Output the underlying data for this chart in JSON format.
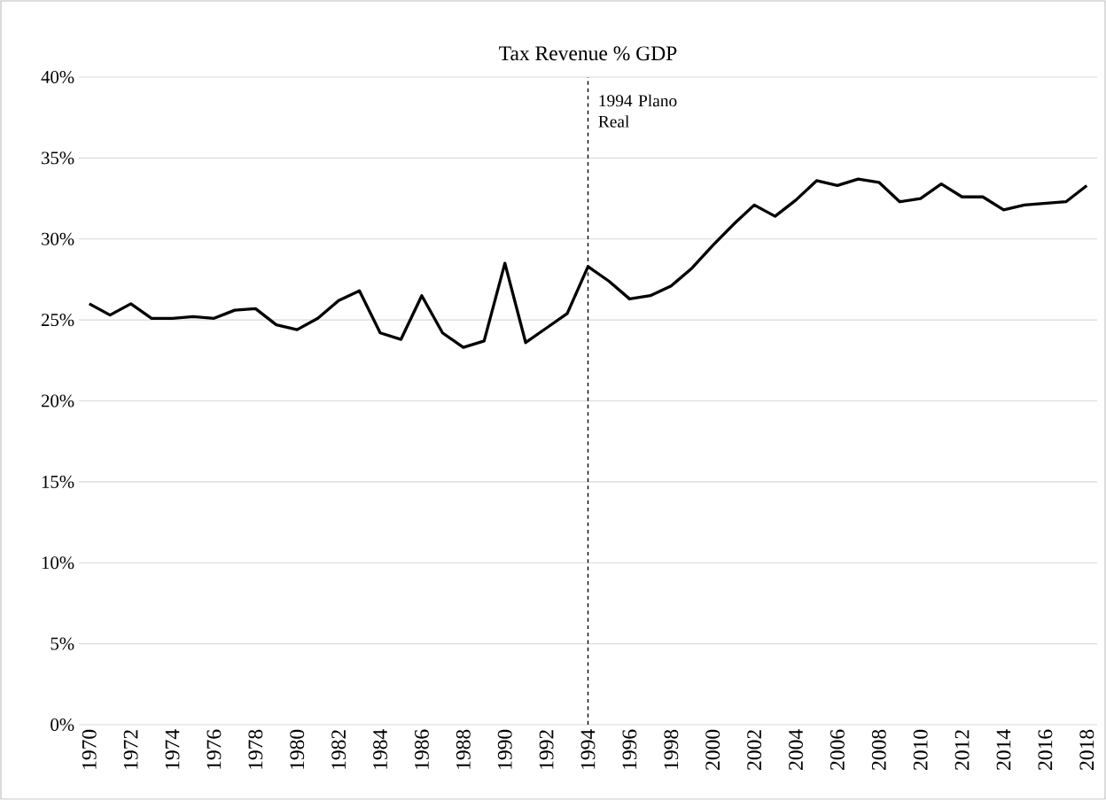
{
  "chart_data": {
    "type": "line",
    "title": "Tax Revenue % GDP",
    "x": [
      1970,
      1971,
      1972,
      1973,
      1974,
      1975,
      1976,
      1977,
      1978,
      1979,
      1980,
      1981,
      1982,
      1983,
      1984,
      1985,
      1986,
      1987,
      1988,
      1989,
      1990,
      1991,
      1992,
      1993,
      1994,
      1995,
      1996,
      1997,
      1998,
      1999,
      2000,
      2001,
      2002,
      2003,
      2004,
      2005,
      2006,
      2007,
      2008,
      2009,
      2010,
      2011,
      2012,
      2013,
      2014,
      2015,
      2016,
      2017,
      2018
    ],
    "series": [
      {
        "color": "#000000",
        "values": [
          26.0,
          25.3,
          26.0,
          25.1,
          25.1,
          25.2,
          25.1,
          25.6,
          25.7,
          24.7,
          24.4,
          25.1,
          26.2,
          26.8,
          24.2,
          23.8,
          26.5,
          24.2,
          23.3,
          23.7,
          28.5,
          23.6,
          24.5,
          25.4,
          28.3,
          27.4,
          26.3,
          26.5,
          27.1,
          28.2,
          29.6,
          30.9,
          32.1,
          31.4,
          32.4,
          33.6,
          33.3,
          33.7,
          33.5,
          32.3,
          32.5,
          33.4,
          32.6,
          32.6,
          31.8,
          32.1,
          32.2,
          32.3,
          33.3
        ]
      }
    ],
    "xlim": [
      1969.5,
      2018.5
    ],
    "xticks": [
      1970,
      1972,
      1974,
      1976,
      1978,
      1980,
      1982,
      1984,
      1986,
      1988,
      1990,
      1992,
      1994,
      1996,
      1998,
      2000,
      2002,
      2004,
      2006,
      2008,
      2010,
      2012,
      2014,
      2016,
      2018
    ],
    "ylim": [
      0,
      40
    ],
    "yticks": [
      {
        "value": 0,
        "label": "0%"
      },
      {
        "value": 5,
        "label": "5%"
      },
      {
        "value": 10,
        "label": "10%"
      },
      {
        "value": 15,
        "label": "15%"
      },
      {
        "value": 20,
        "label": "20%"
      },
      {
        "value": 25,
        "label": "25%"
      },
      {
        "value": 30,
        "label": "30%"
      },
      {
        "value": 35,
        "label": "35%"
      },
      {
        "value": 40,
        "label": "40%"
      }
    ],
    "ref_lines": [
      {
        "axis": "x",
        "value": 1994,
        "label": "1994 Plano Real",
        "color": "#000000",
        "line_style": "dashed"
      }
    ],
    "grid": "y",
    "marker": "none",
    "line_style": "solid"
  }
}
